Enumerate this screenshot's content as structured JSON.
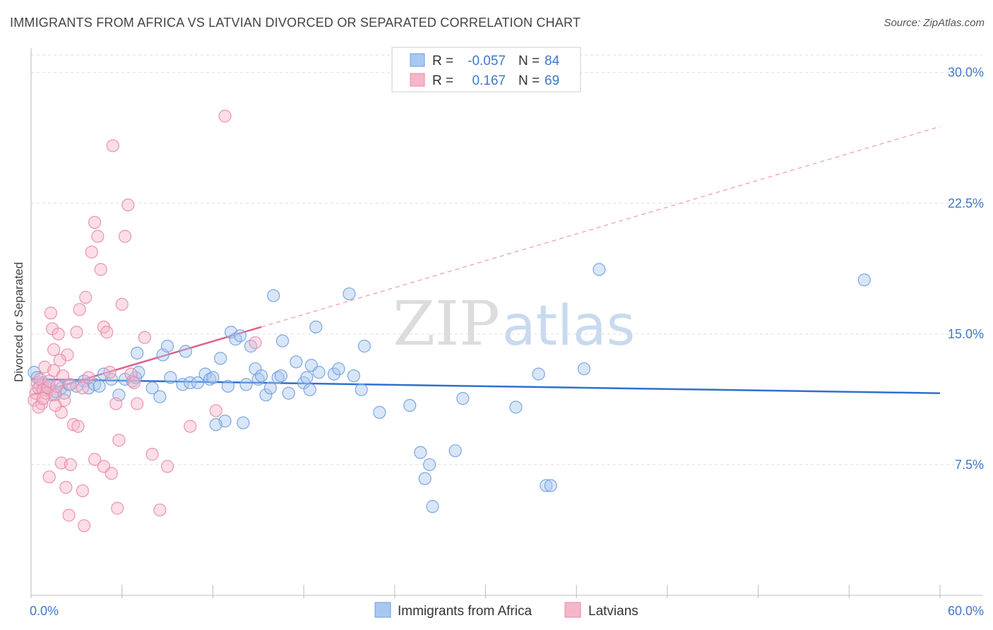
{
  "header": {
    "title": "IMMIGRANTS FROM AFRICA VS LATVIAN DIVORCED OR SEPARATED CORRELATION CHART",
    "source": "Source: ZipAtlas.com"
  },
  "watermark": {
    "zip": "ZIP",
    "atlas": "atlas"
  },
  "legend": {
    "r_label": "R =",
    "n_label": "N =",
    "rows": [
      {
        "r": "-0.057",
        "n": "84",
        "color": "#a8c8f0"
      },
      {
        "r": "0.167",
        "n": "69",
        "color": "#f6b6c8"
      }
    ]
  },
  "chart_data": {
    "type": "scatter",
    "title": "IMMIGRANTS FROM AFRICA VS LATVIAN DIVORCED OR SEPARATED CORRELATION CHART",
    "xlabel": "",
    "ylabel": "Divorced or Separated",
    "xlim": [
      0,
      60
    ],
    "ylim": [
      0,
      31
    ],
    "x_tick_labels": [
      "0.0%",
      "60.0%"
    ],
    "y_ticks": [
      7.5,
      15.0,
      22.5,
      30.0
    ],
    "y_tick_labels": [
      "7.5%",
      "15.0%",
      "22.5%",
      "30.0%"
    ],
    "grid": true,
    "legend_position": "top-center",
    "series": [
      {
        "name": "Immigrants from Africa",
        "color": "#6f9ee0",
        "fill": "#a8c8f0",
        "trend": {
          "x0": 0,
          "y0": 12.4,
          "x1": 60,
          "y1": 11.6
        },
        "points": [
          [
            0.2,
            12.8
          ],
          [
            0.4,
            12.5
          ],
          [
            0.6,
            12.0
          ],
          [
            0.8,
            12.2
          ],
          [
            1.0,
            11.8
          ],
          [
            1.2,
            12.0
          ],
          [
            1.4,
            11.5
          ],
          [
            1.6,
            11.7
          ],
          [
            2.0,
            11.9
          ],
          [
            2.2,
            11.6
          ],
          [
            2.5,
            12.1
          ],
          [
            3.0,
            12.0
          ],
          [
            3.5,
            12.3
          ],
          [
            3.8,
            11.9
          ],
          [
            4.2,
            12.1
          ],
          [
            4.5,
            12.0
          ],
          [
            4.8,
            12.7
          ],
          [
            5.3,
            12.4
          ],
          [
            5.8,
            11.5
          ],
          [
            6.2,
            12.4
          ],
          [
            6.7,
            12.3
          ],
          [
            6.9,
            12.5
          ],
          [
            7.1,
            12.8
          ],
          [
            8.0,
            11.9
          ],
          [
            8.5,
            11.4
          ],
          [
            8.7,
            13.8
          ],
          [
            9.0,
            14.3
          ],
          [
            9.2,
            12.5
          ],
          [
            10.0,
            12.1
          ],
          [
            10.5,
            12.2
          ],
          [
            11.0,
            12.2
          ],
          [
            11.5,
            12.7
          ],
          [
            11.8,
            12.4
          ],
          [
            12.0,
            12.5
          ],
          [
            12.5,
            13.6
          ],
          [
            12.8,
            10.0
          ],
          [
            13.0,
            12.0
          ],
          [
            13.2,
            15.1
          ],
          [
            13.5,
            14.7
          ],
          [
            13.8,
            14.9
          ],
          [
            14.2,
            12.1
          ],
          [
            14.5,
            14.3
          ],
          [
            14.8,
            13.0
          ],
          [
            15.0,
            12.4
          ],
          [
            15.2,
            12.6
          ],
          [
            15.5,
            11.5
          ],
          [
            15.8,
            11.9
          ],
          [
            16.0,
            17.2
          ],
          [
            16.3,
            12.5
          ],
          [
            16.6,
            14.6
          ],
          [
            17.0,
            11.6
          ],
          [
            17.5,
            13.4
          ],
          [
            18.0,
            12.2
          ],
          [
            18.2,
            12.5
          ],
          [
            18.4,
            11.8
          ],
          [
            18.5,
            13.2
          ],
          [
            18.8,
            15.4
          ],
          [
            19.0,
            12.8
          ],
          [
            20.0,
            12.7
          ],
          [
            20.3,
            13.0
          ],
          [
            21.0,
            17.3
          ],
          [
            21.3,
            12.6
          ],
          [
            21.8,
            11.8
          ],
          [
            22.0,
            14.3
          ],
          [
            23.0,
            10.5
          ],
          [
            25.0,
            10.9
          ],
          [
            25.7,
            8.2
          ],
          [
            26.0,
            6.7
          ],
          [
            26.3,
            7.5
          ],
          [
            26.5,
            5.1
          ],
          [
            28.0,
            8.3
          ],
          [
            28.5,
            11.3
          ],
          [
            32.0,
            10.8
          ],
          [
            33.5,
            12.7
          ],
          [
            34.0,
            6.3
          ],
          [
            34.3,
            6.3
          ],
          [
            36.5,
            13.0
          ],
          [
            37.5,
            18.7
          ],
          [
            55.0,
            18.1
          ],
          [
            16.5,
            12.6
          ],
          [
            10.2,
            14.0
          ],
          [
            7.0,
            13.9
          ],
          [
            12.2,
            9.8
          ],
          [
            14.0,
            9.9
          ]
        ]
      },
      {
        "name": "Latvians",
        "color": "#e889a8",
        "fill": "#f6b6c8",
        "trend": {
          "x0": 0,
          "y0": 11.5,
          "x1": 60,
          "y1": 26.9,
          "solid_until_x": 15.2
        },
        "points": [
          [
            0.2,
            11.2
          ],
          [
            0.3,
            11.6
          ],
          [
            0.4,
            12.2
          ],
          [
            0.5,
            11.9
          ],
          [
            0.6,
            12.4
          ],
          [
            0.7,
            11.0
          ],
          [
            0.8,
            11.8
          ],
          [
            0.9,
            13.1
          ],
          [
            1.0,
            11.6
          ],
          [
            1.1,
            11.9
          ],
          [
            1.2,
            12.3
          ],
          [
            1.3,
            16.2
          ],
          [
            1.4,
            15.3
          ],
          [
            1.5,
            14.1
          ],
          [
            1.6,
            11.5
          ],
          [
            1.7,
            12.0
          ],
          [
            1.8,
            15.0
          ],
          [
            2.0,
            10.5
          ],
          [
            2.2,
            11.2
          ],
          [
            2.4,
            13.8
          ],
          [
            2.6,
            12.1
          ],
          [
            2.8,
            9.8
          ],
          [
            3.0,
            15.1
          ],
          [
            3.2,
            16.4
          ],
          [
            3.4,
            11.9
          ],
          [
            3.6,
            17.1
          ],
          [
            3.8,
            12.5
          ],
          [
            4.0,
            19.7
          ],
          [
            4.2,
            21.4
          ],
          [
            4.4,
            20.6
          ],
          [
            4.6,
            18.7
          ],
          [
            4.8,
            15.4
          ],
          [
            5.0,
            15.1
          ],
          [
            5.2,
            12.8
          ],
          [
            5.4,
            25.8
          ],
          [
            5.6,
            11.0
          ],
          [
            5.8,
            8.9
          ],
          [
            6.0,
            16.7
          ],
          [
            6.2,
            20.6
          ],
          [
            6.4,
            22.4
          ],
          [
            6.6,
            12.7
          ],
          [
            6.8,
            12.2
          ],
          [
            7.0,
            11.0
          ],
          [
            7.5,
            14.8
          ],
          [
            8.0,
            8.1
          ],
          [
            8.5,
            4.9
          ],
          [
            9.0,
            7.4
          ],
          [
            10.5,
            9.7
          ],
          [
            12.2,
            10.6
          ],
          [
            12.8,
            27.5
          ],
          [
            14.8,
            14.5
          ],
          [
            1.2,
            6.8
          ],
          [
            2.0,
            7.6
          ],
          [
            2.3,
            6.2
          ],
          [
            2.5,
            4.6
          ],
          [
            2.6,
            7.5
          ],
          [
            3.1,
            9.7
          ],
          [
            3.4,
            6.0
          ],
          [
            3.5,
            4.0
          ],
          [
            4.2,
            7.8
          ],
          [
            4.8,
            7.4
          ],
          [
            5.3,
            7.0
          ],
          [
            5.7,
            5.0
          ],
          [
            1.5,
            12.9
          ],
          [
            0.5,
            10.8
          ],
          [
            1.9,
            13.5
          ],
          [
            0.8,
            11.3
          ],
          [
            1.6,
            10.9
          ],
          [
            2.1,
            12.6
          ]
        ]
      }
    ]
  },
  "bottom_legend": {
    "items": [
      {
        "label": "Immigrants from Africa",
        "color": "#a8c8f0"
      },
      {
        "label": "Latvians",
        "color": "#f6b6c8"
      }
    ]
  }
}
